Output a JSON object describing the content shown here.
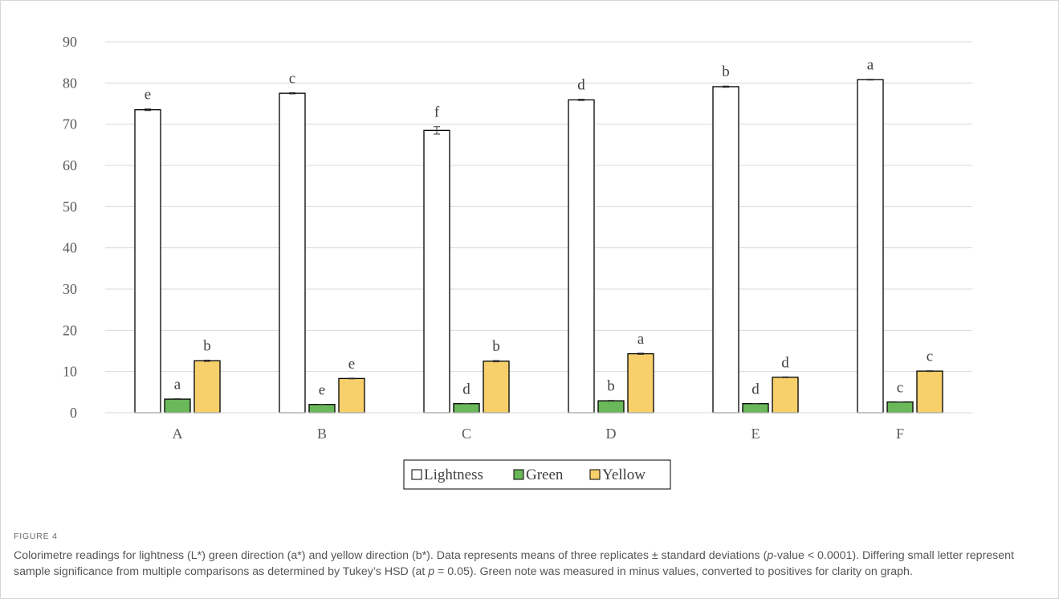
{
  "figure": {
    "label": "FIGURE 4",
    "caption": [
      {
        "t": "Colorimetre readings for lightness (L*) green direction (a*) and yellow direction (b*). Data represents means of three replicates ± standard deviations ("
      },
      {
        "t": "p",
        "i": true
      },
      {
        "t": "-value < 0.0001). Differing small letter represent sample significance from multiple comparisons as determined by Tukey’s HSD (at "
      },
      {
        "t": "p",
        "i": true
      },
      {
        "t": " = 0.05). Green note was measured in minus values, converted to positives for clarity on graph."
      }
    ]
  },
  "chart_data": {
    "type": "bar",
    "categories": [
      "A",
      "B",
      "C",
      "D",
      "E",
      "F"
    ],
    "ylim": [
      0,
      90
    ],
    "yticks": [
      0,
      10,
      20,
      30,
      40,
      50,
      60,
      70,
      80,
      90
    ],
    "grid": true,
    "legend": "bottom",
    "series": [
      {
        "name": "Lightness",
        "color": "#ffffff",
        "values": [
          73.5,
          77.5,
          68.5,
          75.9,
          79.1,
          80.8
        ],
        "errors": [
          0.2,
          0.15,
          0.9,
          0.15,
          0.15,
          0.1
        ],
        "letters": [
          "e",
          "c",
          "f",
          "d",
          "b",
          "a"
        ]
      },
      {
        "name": "Green",
        "color": "#6ab85a",
        "values": [
          3.3,
          2.0,
          2.2,
          2.9,
          2.2,
          2.6
        ],
        "errors": [
          0.1,
          0.05,
          0.05,
          0.1,
          0.05,
          0.05
        ],
        "letters": [
          "a",
          "e",
          "d",
          "b",
          "d",
          "c"
        ]
      },
      {
        "name": "Yellow",
        "color": "#f7d06b",
        "values": [
          12.6,
          8.3,
          12.5,
          14.3,
          8.6,
          10.1
        ],
        "errors": [
          0.15,
          0.1,
          0.15,
          0.15,
          0.1,
          0.1
        ],
        "letters": [
          "b",
          "e",
          "b",
          "a",
          "d",
          "c"
        ]
      }
    ]
  }
}
